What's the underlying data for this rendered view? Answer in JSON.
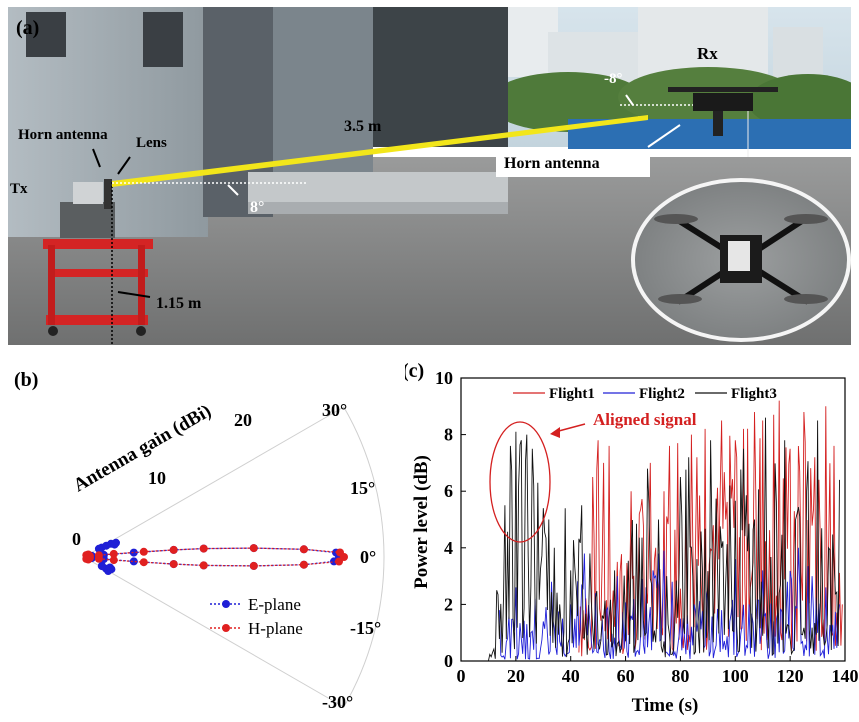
{
  "panel_a": {
    "panel_label": "(a)",
    "tx_label": "Tx",
    "rx_label": "Rx",
    "horn_antenna_tx": "Horn antenna",
    "lens_label": "Lens",
    "distance_label": "3.5 m",
    "angle_tx": "8°",
    "angle_rx": "-8°",
    "height_label": "1.15 m",
    "horn_antenna_rx": "Horn antenna",
    "colors": {
      "beam": "#f2e61a",
      "sky": "#cfdde6",
      "ground": "#8d8f90"
    }
  },
  "panel_b": {
    "panel_label": "(b)",
    "radial_axis_label": "Antenna gain (dBi)",
    "radial_ticks": [
      "0",
      "10",
      "20"
    ],
    "angle_ticks": [
      "30°",
      "15°",
      "0°",
      "-15°",
      "-30°"
    ],
    "legend": [
      "E-plane",
      "H-plane"
    ]
  },
  "panel_c": {
    "panel_label": "(c)",
    "xlabel": "Time (s)",
    "ylabel": "Power level (dB)",
    "annotation": "Aligned signal",
    "x_ticks": [
      "0",
      "20",
      "40",
      "60",
      "80",
      "100",
      "120",
      "140"
    ],
    "y_ticks": [
      "0",
      "2",
      "4",
      "6",
      "8",
      "10"
    ]
  },
  "chart_data": [
    {
      "type": "scatter",
      "subtype": "polar",
      "xlabel": "",
      "ylabel": "Antenna gain (dBi)",
      "radial_range": [
        0,
        30
      ],
      "angular_range_deg": [
        -30,
        30
      ],
      "series": [
        {
          "name": "E-plane",
          "color": "#1f1fd6",
          "points_deg_gain": [
            [
              0,
              25.5
            ],
            [
              1,
              25.2
            ],
            [
              2,
              22
            ],
            [
              3,
              17
            ],
            [
              4,
              12
            ],
            [
              4.5,
              9
            ],
            [
              5,
              5
            ],
            [
              6,
              2
            ],
            [
              8,
              0.8
            ],
            [
              12,
              0.3
            ],
            [
              20,
              0.3
            ],
            [
              28,
              2
            ],
            [
              26,
              3
            ],
            [
              24,
              3.5
            ],
            [
              22,
              3.3
            ],
            [
              27,
              2.5
            ],
            [
              29,
              1.7
            ],
            [
              -1,
              25
            ],
            [
              -2,
              22
            ],
            [
              -3,
              17
            ],
            [
              -4,
              12
            ],
            [
              -4.5,
              9
            ],
            [
              -5,
              5
            ],
            [
              -6,
              2
            ],
            [
              -8,
              0.8
            ],
            [
              -12,
              0.3
            ],
            [
              -20,
              0.3
            ],
            [
              -26,
              2
            ],
            [
              -28,
              2.5
            ],
            [
              -30,
              2.8
            ],
            [
              -22,
              2.8
            ],
            [
              -24,
              3
            ],
            [
              -27,
              2
            ]
          ]
        },
        {
          "name": "H-plane",
          "color": "#e02020",
          "points_deg_gain": [
            [
              0,
              26
            ],
            [
              1,
              25.6
            ],
            [
              2,
              22
            ],
            [
              3,
              17
            ],
            [
              4,
              12
            ],
            [
              4.5,
              9
            ],
            [
              5,
              6
            ],
            [
              6,
              3
            ],
            [
              7,
              1.5
            ],
            [
              10,
              0.6
            ],
            [
              15,
              0.4
            ],
            [
              30,
              0.5
            ],
            [
              40,
              0.3
            ],
            [
              -1,
              25.5
            ],
            [
              -2,
              22
            ],
            [
              -3,
              17
            ],
            [
              -4,
              12
            ],
            [
              -4.5,
              9
            ],
            [
              -5,
              6
            ],
            [
              -6,
              3
            ],
            [
              -7,
              1.5
            ],
            [
              -10,
              0.6
            ],
            [
              -15,
              0.4
            ],
            [
              -30,
              0.5
            ],
            [
              -40,
              0.3
            ]
          ]
        }
      ]
    },
    {
      "type": "line",
      "xlabel": "Time (s)",
      "ylabel": "Power level (dB)",
      "xlim": [
        0,
        140
      ],
      "ylim": [
        0,
        10
      ],
      "x_ticks": [
        0,
        20,
        40,
        60,
        80,
        100,
        120,
        140
      ],
      "y_ticks": [
        0,
        2,
        4,
        6,
        8,
        10
      ],
      "annotation": {
        "text": "Aligned signal",
        "x": 21,
        "y": 6.3
      },
      "legend_position": "top-right",
      "series": [
        {
          "name": "Flight1",
          "color": "#d42020",
          "peaks": [
            [
              43,
              0.3
            ],
            [
              48,
              6.5
            ],
            [
              50,
              7.8
            ],
            [
              52,
              7.0
            ],
            [
              54,
              7.6
            ],
            [
              57,
              3.5
            ],
            [
              62,
              6.0
            ],
            [
              65,
              5.2
            ],
            [
              69,
              7.0
            ],
            [
              71,
              4.0
            ],
            [
              74,
              6.0
            ],
            [
              76,
              7.6
            ],
            [
              79,
              7.7
            ],
            [
              82,
              5.5
            ],
            [
              84,
              8.0
            ],
            [
              86,
              7.2
            ],
            [
              89,
              8.2
            ],
            [
              92,
              4.8
            ],
            [
              95,
              8.5
            ],
            [
              100,
              7.8
            ],
            [
              103,
              8.2
            ],
            [
              107,
              8.8
            ],
            [
              110,
              8.5
            ],
            [
              114,
              8.7
            ],
            [
              116,
              9.2
            ],
            [
              120,
              7.5
            ],
            [
              125,
              8.8
            ],
            [
              129,
              7.2
            ],
            [
              133,
              9.0
            ],
            [
              136,
              7.6
            ],
            [
              139,
              2.0
            ]
          ]
        },
        {
          "name": "Flight2",
          "color": "#2020d8",
          "peaks": [
            [
              14,
              1.8
            ],
            [
              17,
              0.8
            ],
            [
              20,
              2.6
            ],
            [
              24,
              1.3
            ],
            [
              27,
              2.2
            ],
            [
              30,
              1.4
            ],
            [
              33,
              2.8
            ],
            [
              37,
              1.5
            ],
            [
              40,
              2.0
            ],
            [
              45,
              3.8
            ],
            [
              49,
              2.4
            ],
            [
              53,
              1.8
            ],
            [
              57,
              3.0
            ],
            [
              62,
              1.6
            ],
            [
              66,
              2.9
            ],
            [
              70,
              3.2
            ],
            [
              72,
              3.8
            ],
            [
              74,
              3.9
            ],
            [
              77,
              2.8
            ],
            [
              80,
              1.5
            ],
            [
              85,
              2.0
            ],
            [
              90,
              2.6
            ],
            [
              95,
              1.8
            ],
            [
              100,
              3.6
            ],
            [
              105,
              2.0
            ],
            [
              110,
              3.2
            ],
            [
              114,
              1.4
            ],
            [
              119,
              2.8
            ],
            [
              123,
              4.0
            ],
            [
              128,
              3.0
            ],
            [
              133,
              2.6
            ],
            [
              138,
              2.0
            ]
          ]
        },
        {
          "name": "Flight3",
          "color": "#111111",
          "peaks": [
            [
              10,
              0
            ],
            [
              13,
              2.5
            ],
            [
              16,
              5.5
            ],
            [
              18,
              7.6
            ],
            [
              20,
              8.1
            ],
            [
              22,
              7.8
            ],
            [
              24,
              8.0
            ],
            [
              26,
              7.5
            ],
            [
              28,
              6.3
            ],
            [
              30,
              5.4
            ],
            [
              32,
              5.0
            ],
            [
              34,
              4.0
            ],
            [
              36,
              2.0
            ],
            [
              38,
              5.4
            ],
            [
              40,
              3.2
            ],
            [
              44,
              5.5
            ],
            [
              47,
              3.8
            ],
            [
              52,
              1.5
            ],
            [
              56,
              3.2
            ],
            [
              62,
              4.0
            ],
            [
              68,
              6.8
            ],
            [
              72,
              5.0
            ],
            [
              75,
              3.0
            ],
            [
              80,
              6.5
            ],
            [
              83,
              7.2
            ],
            [
              86,
              3.6
            ],
            [
              91,
              7.8
            ],
            [
              95,
              4.0
            ],
            [
              98,
              6.2
            ],
            [
              103,
              7.5
            ],
            [
              107,
              5.0
            ],
            [
              111,
              8.6
            ],
            [
              115,
              5.6
            ],
            [
              118,
              7.8
            ],
            [
              122,
              5.0
            ],
            [
              126,
              6.0
            ],
            [
              130,
              8.5
            ],
            [
              134,
              4.0
            ],
            [
              138,
              6.4
            ]
          ]
        }
      ]
    }
  ]
}
